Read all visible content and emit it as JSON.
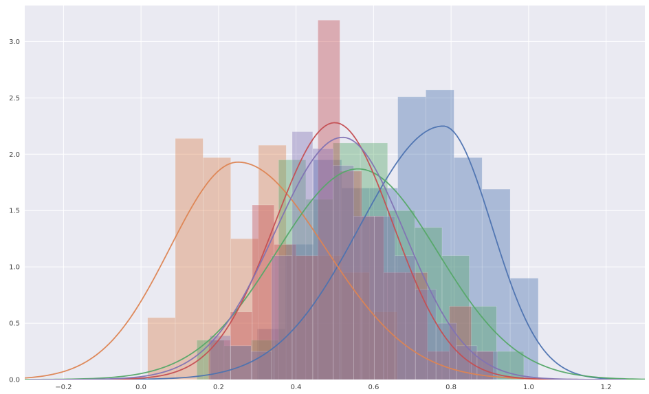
{
  "figure": {
    "background": "#ffffff",
    "axes_background": "#eaeaf2",
    "grid_color": "#ffffff",
    "tick_color": "#3d3d3d"
  },
  "chart_data": {
    "type": "histogram+kde",
    "title": "",
    "xlabel": "",
    "ylabel": "",
    "grid": true,
    "legend": "none",
    "xlim": [
      -0.3,
      1.3
    ],
    "ylim": [
      0,
      3.32
    ],
    "hist_alpha": 0.4,
    "x_ticks": [
      {
        "v": -0.2,
        "label": "−0.2"
      },
      {
        "v": 0.0,
        "label": "0.0"
      },
      {
        "v": 0.2,
        "label": "0.2"
      },
      {
        "v": 0.4,
        "label": "0.4"
      },
      {
        "v": 0.6,
        "label": "0.6"
      },
      {
        "v": 0.8,
        "label": "0.8"
      },
      {
        "v": 1.0,
        "label": "1.0"
      },
      {
        "v": 1.2,
        "label": "1.2"
      }
    ],
    "y_ticks": [
      {
        "v": 0.0,
        "label": "0.0"
      },
      {
        "v": 0.5,
        "label": "0.5"
      },
      {
        "v": 1.0,
        "label": "1.0"
      },
      {
        "v": 1.5,
        "label": "1.5"
      },
      {
        "v": 2.0,
        "label": "2.0"
      },
      {
        "v": 2.5,
        "label": "2.5"
      },
      {
        "v": 3.0,
        "label": "3.0"
      }
    ],
    "series": [
      {
        "name": "blue",
        "color": "#4C72B0",
        "hist": {
          "start": 0.3,
          "bin_width": 0.0725,
          "heights": [
            0.45,
            1.2,
            1.95,
            1.7,
            1.7,
            2.51,
            2.57,
            1.97,
            1.69,
            0.9
          ]
        },
        "kde": {
          "mean": 0.78,
          "peak": 2.25,
          "sd_left": 0.215,
          "sd_right": 0.125
        }
      },
      {
        "name": "orange",
        "color": "#DD8452",
        "hist": {
          "start": 0.017,
          "bin_width": 0.0715,
          "heights": [
            0.55,
            2.14,
            1.97,
            1.25,
            2.08,
            1.1,
            1.1,
            0.95,
            0.6
          ]
        },
        "kde": {
          "mean": 0.25,
          "peak": 1.93,
          "sd_left": 0.175,
          "sd_right": 0.225
        }
      },
      {
        "name": "green",
        "color": "#55A868",
        "hist": {
          "start": 0.144,
          "bin_width": 0.0703,
          "heights": [
            0.35,
            0.3,
            0.35,
            1.95,
            1.6,
            2.1,
            2.1,
            1.5,
            1.35,
            1.1,
            0.65,
            0.25
          ]
        },
        "kde": {
          "mean": 0.56,
          "peak": 1.87,
          "sd_left": 0.21,
          "sd_right": 0.205
        }
      },
      {
        "name": "red",
        "color": "#C44E52",
        "hist": {
          "start": 0.174,
          "bin_width": 0.0565,
          "heights": [
            0.35,
            0.6,
            1.55,
            1.2,
            1.1,
            3.19,
            1.85,
            1.45,
            0.95,
            0.95,
            0.25,
            0.65,
            0.25
          ]
        },
        "kde": {
          "mean": 0.5,
          "peak": 2.28,
          "sd_left": 0.155,
          "sd_right": 0.15
        }
      },
      {
        "name": "purple",
        "color": "#8172B3",
        "hist": {
          "start": 0.178,
          "bin_width": 0.053,
          "heights": [
            0.39,
            0.3,
            0.25,
            1.1,
            2.2,
            2.05,
            1.9,
            1.45,
            1.45,
            1.1,
            0.8,
            0.5,
            0.3,
            0.25
          ]
        },
        "kde": {
          "mean": 0.52,
          "peak": 2.15,
          "sd_left": 0.175,
          "sd_right": 0.16
        }
      }
    ]
  }
}
